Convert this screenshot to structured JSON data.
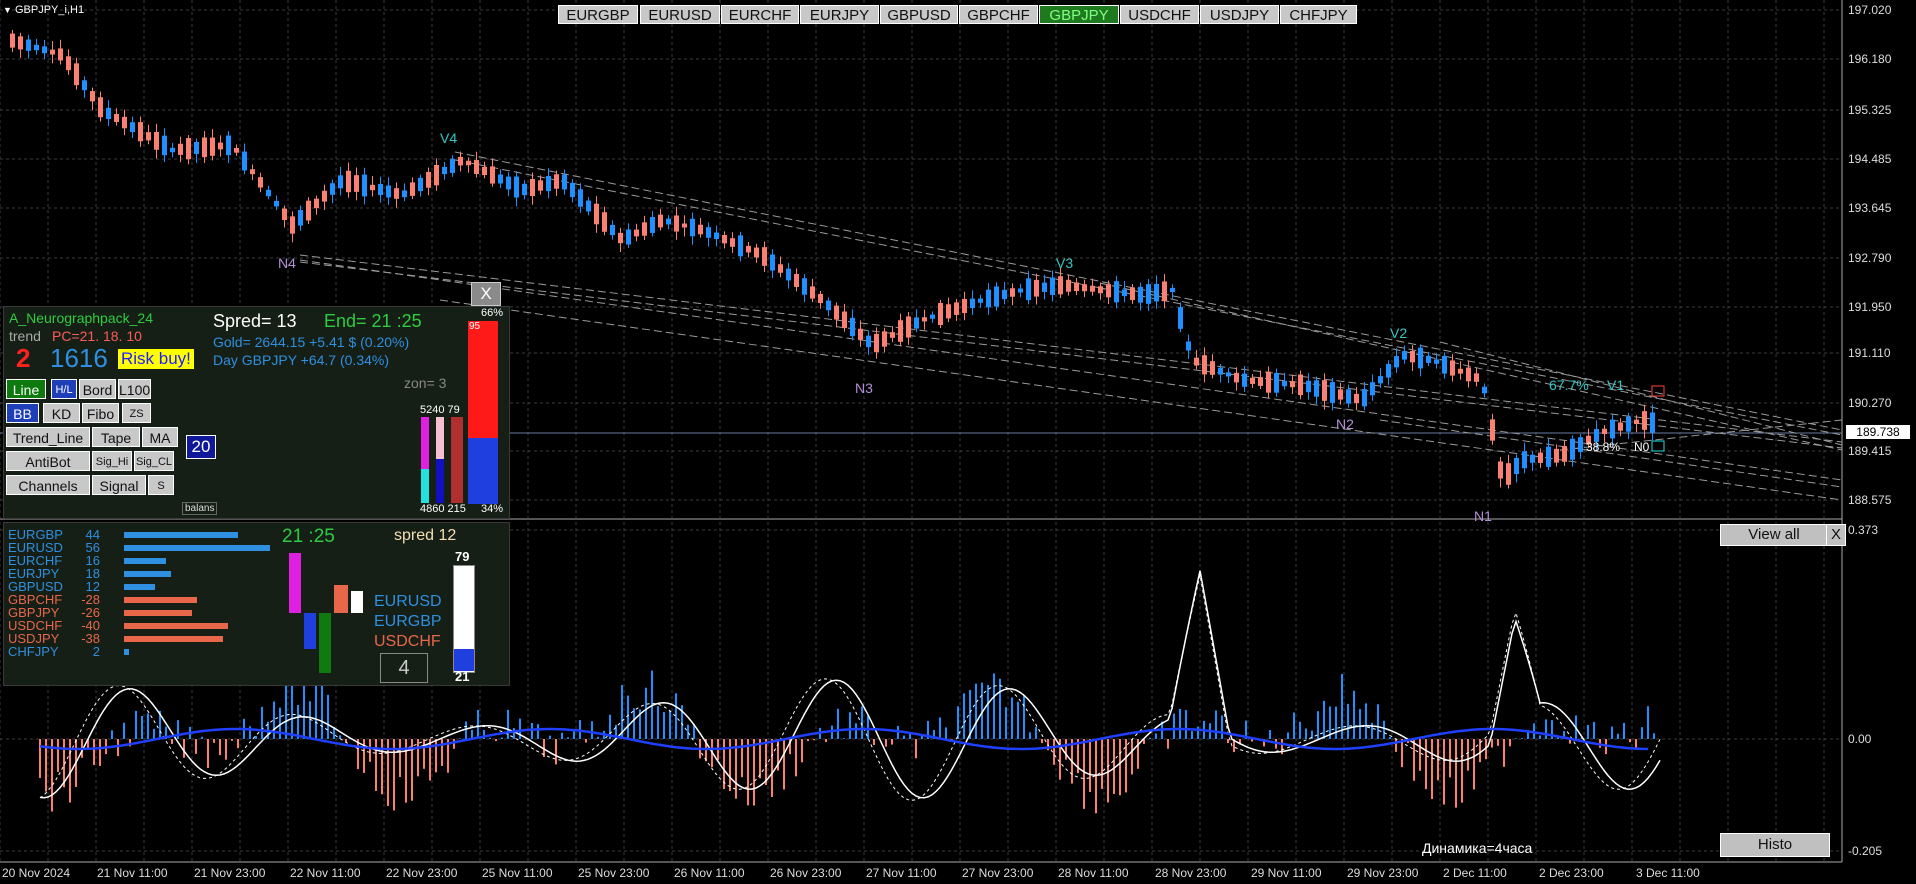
{
  "window": {
    "title": "GBPJPY_i,H1"
  },
  "symbol_tabs": [
    {
      "label": "EURGBP",
      "active": false
    },
    {
      "label": "EURUSD",
      "active": false
    },
    {
      "label": "EURCHF",
      "active": false
    },
    {
      "label": "EURJPY",
      "active": false
    },
    {
      "label": "GBPUSD",
      "active": false
    },
    {
      "label": "GBPCHF",
      "active": false
    },
    {
      "label": "GBPJPY",
      "active": true
    },
    {
      "label": "USDCHF",
      "active": false
    },
    {
      "label": "USDJPY",
      "active": false
    },
    {
      "label": "CHFJPY",
      "active": false
    }
  ],
  "price_axis": {
    "ticks": [
      "197.020",
      "196.180",
      "195.325",
      "194.485",
      "193.645",
      "192.790",
      "191.950",
      "191.110",
      "190.270",
      "189.415",
      "188.575"
    ],
    "current_price": "189.738"
  },
  "time_axis": {
    "ticks": [
      "20 Nov 2024",
      "21 Nov 11:00",
      "21 Nov 23:00",
      "22 Nov 11:00",
      "22 Nov 23:00",
      "25 Nov 11:00",
      "25 Nov 23:00",
      "26 Nov 11:00",
      "26 Nov 23:00",
      "27 Nov 11:00",
      "27 Nov 23:00",
      "28 Nov 11:00",
      "28 Nov 23:00",
      "29 Nov 11:00",
      "29 Nov 23:00",
      "2 Dec 11:00",
      "2 Dec 23:00",
      "3 Dec 11:00"
    ]
  },
  "chart_labels": {
    "v4": "V4",
    "v3": "V3",
    "v2": "V2",
    "v1": "V1",
    "n4": "N4",
    "n3": "N3",
    "n2": "N2",
    "n1": "N1",
    "pct_up": "67.7%",
    "pct_down": "38.8%",
    "n0": "N0"
  },
  "info_panel": {
    "name": "A_Neurographpack_24",
    "spread": "Spred= 13",
    "end": "End= 21 :25",
    "trend_label": "trend",
    "pc": "PC=21. 18. 10",
    "gold": "Gold= 2644.15 +5.41 $ (0.20%)",
    "day": "Day GBPJPY  +64.7 (0.34%)",
    "big_num_red": "2",
    "big_num_blue": "1616",
    "signal": "Risk buy!",
    "zon": "zon= 3",
    "close_label": "X",
    "pct_top": "66%",
    "pct_bottom": "34%",
    "val_95": "95",
    "bar_top_labels": "5240 79",
    "bar_bottom_labels": "4860 215",
    "counter": "20",
    "balans": "balans",
    "buttons": [
      {
        "label": "Line",
        "state": "on"
      },
      {
        "label": "H/L",
        "state": "blue"
      },
      {
        "label": "Bord",
        "state": ""
      },
      {
        "label": "L100",
        "state": ""
      },
      {
        "label": "BB",
        "state": "blue"
      },
      {
        "label": "KD",
        "state": ""
      },
      {
        "label": "Fibo",
        "state": ""
      },
      {
        "label": "ZS",
        "state": ""
      },
      {
        "label": "Trend_Line",
        "state": ""
      },
      {
        "label": "Tape",
        "state": ""
      },
      {
        "label": "MA",
        "state": ""
      },
      {
        "label": "AntiBot",
        "state": ""
      },
      {
        "label": "Sig_Hi",
        "state": ""
      },
      {
        "label": "Sig_CL",
        "state": ""
      },
      {
        "label": "Channels",
        "state": ""
      },
      {
        "label": "Signal",
        "state": ""
      },
      {
        "label": "S",
        "state": ""
      }
    ]
  },
  "strength_panel": {
    "time": "21 :25",
    "spread": "spred 12",
    "pairs": [
      {
        "name": "EURGBP",
        "value": "44",
        "v": 44,
        "color": "#2f8fe0"
      },
      {
        "name": "EURUSD",
        "value": "56",
        "v": 56,
        "color": "#2f8fe0"
      },
      {
        "name": "EURCHF",
        "value": "16",
        "v": 16,
        "color": "#2f8fe0"
      },
      {
        "name": "EURJPY",
        "value": "18",
        "v": 18,
        "color": "#2f8fe0"
      },
      {
        "name": "GBPUSD",
        "value": "12",
        "v": 12,
        "color": "#2f8fe0"
      },
      {
        "name": "GBPCHF",
        "value": "-28",
        "v": 28,
        "color": "#e8674a"
      },
      {
        "name": "GBPJPY",
        "value": "-26",
        "v": 26,
        "color": "#e8674a"
      },
      {
        "name": "USDCHF",
        "value": "-40",
        "v": 40,
        "color": "#e8674a"
      },
      {
        "name": "USDJPY",
        "value": "-38",
        "v": 38,
        "color": "#e8674a"
      },
      {
        "name": "CHFJPY",
        "value": "2",
        "v": 2,
        "color": "#2f8fe0"
      }
    ],
    "top3": [
      "EURUSD",
      "EURGBP",
      "USDCHF"
    ],
    "count": "4",
    "gauge_top": "79",
    "gauge_bottom": "21"
  },
  "oscillator": {
    "axis_top": "0.373",
    "axis_zero": "0.00",
    "axis_bottom": "-0.205",
    "caption": "Динамика=4часа",
    "view_all": "View all",
    "close": "X",
    "histo": "Histo"
  },
  "colors": {
    "bull": "#1e90ff",
    "bear": "#fa8072",
    "grid": "#404040",
    "accent": "#2ecc40"
  }
}
